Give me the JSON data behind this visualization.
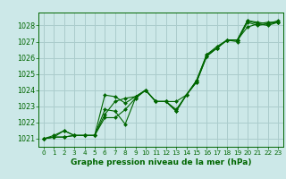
{
  "title": "Graphe pression niveau de la mer (hPa)",
  "bg_color": "#cce8e8",
  "grid_color": "#aacccc",
  "line_color": "#006600",
  "marker_color": "#006600",
  "text_color": "#006600",
  "x_ticks": [
    0,
    1,
    2,
    3,
    4,
    5,
    6,
    7,
    8,
    9,
    10,
    11,
    12,
    13,
    14,
    15,
    16,
    17,
    18,
    19,
    20,
    21,
    22,
    23
  ],
  "y_ticks": [
    1021,
    1022,
    1023,
    1024,
    1025,
    1026,
    1027,
    1028
  ],
  "ylim": [
    1020.5,
    1028.8
  ],
  "xlim": [
    -0.5,
    23.5
  ],
  "series": [
    [
      1021.0,
      1021.1,
      1021.1,
      1021.2,
      1021.2,
      1021.2,
      1022.8,
      1022.7,
      1021.9,
      1023.5,
      1024.0,
      1023.3,
      1023.3,
      1023.3,
      1023.7,
      1024.5,
      1026.1,
      1026.6,
      1027.1,
      1027.0,
      1028.2,
      1028.0,
      1028.1,
      1028.2
    ],
    [
      1021.0,
      1021.1,
      1021.1,
      1021.2,
      1021.2,
      1021.2,
      1022.3,
      1022.3,
      1022.8,
      1023.5,
      1024.0,
      1023.3,
      1023.3,
      1022.8,
      1023.7,
      1024.5,
      1026.1,
      1026.6,
      1027.1,
      1027.1,
      1027.9,
      1028.1,
      1028.2,
      1028.2
    ],
    [
      1021.0,
      1021.1,
      1021.5,
      1021.2,
      1021.2,
      1021.2,
      1023.7,
      1023.6,
      1023.2,
      1023.6,
      1024.0,
      1023.3,
      1023.3,
      1022.7,
      1023.7,
      1024.6,
      1026.2,
      1026.6,
      1027.1,
      1027.1,
      1028.3,
      1028.1,
      1028.0,
      1028.2
    ],
    [
      1021.0,
      1021.2,
      1021.5,
      1021.2,
      1021.2,
      1021.2,
      1022.5,
      1023.3,
      1023.5,
      1023.6,
      1024.0,
      1023.3,
      1023.3,
      1022.7,
      1023.7,
      1024.6,
      1026.2,
      1026.7,
      1027.1,
      1027.1,
      1028.3,
      1028.2,
      1028.1,
      1028.3
    ]
  ],
  "figsize": [
    3.2,
    2.0
  ],
  "dpi": 100
}
